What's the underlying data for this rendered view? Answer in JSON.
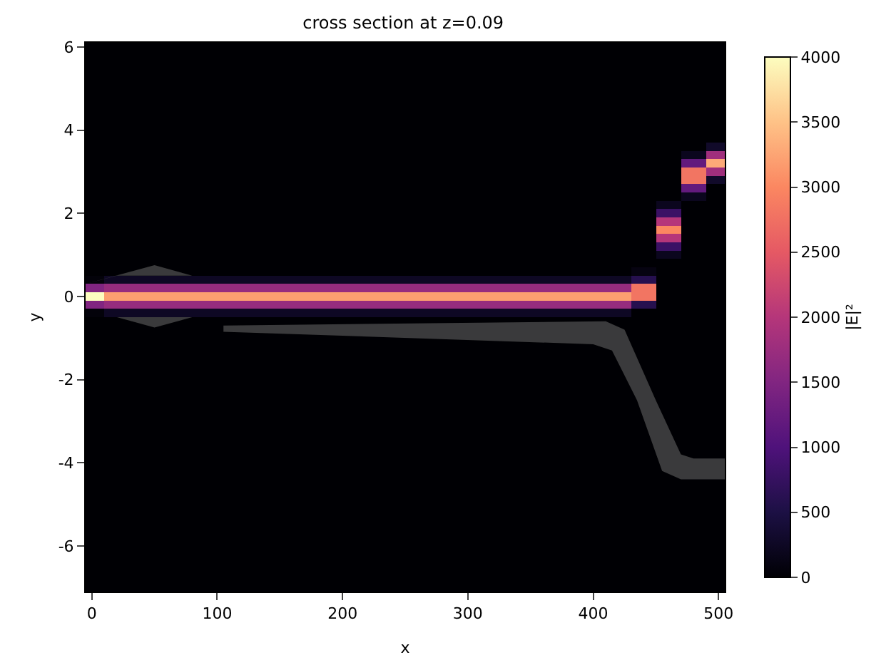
{
  "chart_data": {
    "type": "heatmap",
    "title": "cross section at z=0.09",
    "xlabel": "x",
    "ylabel": "y",
    "clabel": "|E|²",
    "x": [
      0,
      20,
      40,
      60,
      80,
      100,
      120,
      140,
      160,
      180,
      200,
      220,
      240,
      260,
      280,
      300,
      320,
      340,
      360,
      380,
      400,
      420,
      440,
      460,
      480,
      500
    ],
    "y": [
      6.0,
      5.8,
      5.6,
      5.4,
      5.2,
      5.0,
      4.8,
      4.6,
      4.4,
      4.2,
      4.0,
      3.8,
      3.6,
      3.4,
      3.2,
      3.0,
      2.8,
      2.6,
      2.4,
      2.2,
      2.0,
      1.8,
      1.6,
      1.4,
      1.2,
      1.0,
      0.8,
      0.6,
      0.4,
      0.2,
      0,
      -0.2,
      -0.4,
      -0.6,
      -0.8,
      -1.0,
      -1.2,
      -1.4,
      -1.6,
      -1.8,
      -2.0,
      -2.2,
      -2.4,
      -2.6,
      -2.8,
      -3.0,
      -3.2,
      -3.4,
      -3.6,
      -3.8,
      -4.0,
      -4.2,
      -4.4,
      -4.6,
      -4.8,
      -5.0,
      -5.2,
      -5.4,
      -5.6,
      -5.8,
      -6.0,
      -6.2,
      -6.4,
      -6.6,
      -6.8,
      -7.0
    ],
    "cells": [
      [
        0,
        0,
        0,
        0,
        0,
        0,
        0,
        0,
        0,
        0,
        0,
        0,
        0,
        0,
        0,
        0,
        0,
        0,
        0,
        0,
        0,
        0,
        0,
        0,
        0,
        0
      ],
      [
        0,
        0,
        0,
        0,
        0,
        0,
        0,
        0,
        0,
        0,
        0,
        0,
        0,
        0,
        0,
        0,
        0,
        0,
        0,
        0,
        0,
        0,
        0,
        0,
        0,
        0
      ],
      [
        0,
        0,
        0,
        0,
        0,
        0,
        0,
        0,
        0,
        0,
        0,
        0,
        0,
        0,
        0,
        0,
        0,
        0,
        0,
        0,
        0,
        0,
        0,
        0,
        0,
        0
      ],
      [
        0,
        0,
        0,
        0,
        0,
        0,
        0,
        0,
        0,
        0,
        0,
        0,
        0,
        0,
        0,
        0,
        0,
        0,
        0,
        0,
        0,
        0,
        0,
        0,
        0,
        0
      ],
      [
        0,
        0,
        0,
        0,
        0,
        0,
        0,
        0,
        0,
        0,
        0,
        0,
        0,
        0,
        0,
        0,
        0,
        0,
        0,
        0,
        0,
        0,
        0,
        0,
        0,
        0
      ],
      [
        0,
        0,
        0,
        0,
        0,
        0,
        0,
        0,
        0,
        0,
        0,
        0,
        0,
        0,
        0,
        0,
        0,
        0,
        0,
        0,
        0,
        0,
        0,
        0,
        0,
        0
      ],
      [
        0,
        0,
        0,
        0,
        0,
        0,
        0,
        0,
        0,
        0,
        0,
        0,
        0,
        0,
        0,
        0,
        0,
        0,
        0,
        0,
        0,
        0,
        0,
        0,
        0,
        0
      ],
      [
        0,
        0,
        0,
        0,
        0,
        0,
        0,
        0,
        0,
        0,
        0,
        0,
        0,
        0,
        0,
        0,
        0,
        0,
        0,
        0,
        0,
        0,
        0,
        0,
        0,
        0
      ],
      [
        0,
        0,
        0,
        0,
        0,
        0,
        0,
        0,
        0,
        0,
        0,
        0,
        0,
        0,
        0,
        0,
        0,
        0,
        0,
        0,
        0,
        0,
        0,
        0,
        0,
        0
      ],
      [
        0,
        0,
        0,
        0,
        0,
        0,
        0,
        0,
        0,
        0,
        0,
        0,
        0,
        0,
        0,
        0,
        0,
        0,
        0,
        0,
        0,
        0,
        0,
        0,
        0,
        0
      ],
      [
        0,
        0,
        0,
        0,
        0,
        0,
        0,
        0,
        0,
        0,
        0,
        0,
        0,
        0,
        0,
        0,
        0,
        0,
        0,
        0,
        0,
        0,
        0,
        0,
        0,
        0
      ],
      [
        0,
        0,
        0,
        0,
        0,
        0,
        0,
        0,
        0,
        0,
        0,
        0,
        0,
        0,
        0,
        0,
        0,
        0,
        0,
        0,
        0,
        0,
        0,
        0,
        0,
        0
      ],
      [
        0,
        0,
        0,
        0,
        0,
        0,
        0,
        0,
        0,
        0,
        0,
        0,
        0,
        0,
        0,
        0,
        0,
        0,
        0,
        0,
        0,
        0,
        0,
        0,
        0,
        300
      ],
      [
        0,
        0,
        0,
        0,
        0,
        0,
        0,
        0,
        0,
        0,
        0,
        0,
        0,
        0,
        0,
        0,
        0,
        0,
        0,
        0,
        0,
        0,
        0,
        0,
        200,
        1800
      ],
      [
        0,
        0,
        0,
        0,
        0,
        0,
        0,
        0,
        0,
        0,
        0,
        0,
        0,
        0,
        0,
        0,
        0,
        0,
        0,
        0,
        0,
        0,
        0,
        0,
        1200,
        3300
      ],
      [
        0,
        0,
        0,
        0,
        0,
        0,
        0,
        0,
        0,
        0,
        0,
        0,
        0,
        0,
        0,
        0,
        0,
        0,
        0,
        0,
        0,
        0,
        0,
        0,
        2800,
        1800
      ],
      [
        0,
        0,
        0,
        0,
        0,
        0,
        0,
        0,
        0,
        0,
        0,
        0,
        0,
        0,
        0,
        0,
        0,
        0,
        0,
        0,
        0,
        0,
        0,
        0,
        2800,
        300
      ],
      [
        0,
        0,
        0,
        0,
        0,
        0,
        0,
        0,
        0,
        0,
        0,
        0,
        0,
        0,
        0,
        0,
        0,
        0,
        0,
        0,
        0,
        0,
        0,
        0,
        1200,
        0
      ],
      [
        0,
        0,
        0,
        0,
        0,
        0,
        0,
        0,
        0,
        0,
        0,
        0,
        0,
        0,
        0,
        0,
        0,
        0,
        0,
        0,
        0,
        0,
        0,
        0,
        200,
        0
      ],
      [
        0,
        0,
        0,
        0,
        0,
        0,
        0,
        0,
        0,
        0,
        0,
        0,
        0,
        0,
        0,
        0,
        0,
        0,
        0,
        0,
        0,
        0,
        0,
        200,
        0,
        0
      ],
      [
        0,
        0,
        0,
        0,
        0,
        0,
        0,
        0,
        0,
        0,
        0,
        0,
        0,
        0,
        0,
        0,
        0,
        0,
        0,
        0,
        0,
        0,
        0,
        800,
        0,
        0
      ],
      [
        0,
        0,
        0,
        0,
        0,
        0,
        0,
        0,
        0,
        0,
        0,
        0,
        0,
        0,
        0,
        0,
        0,
        0,
        0,
        0,
        0,
        0,
        0,
        2000,
        0,
        0
      ],
      [
        0,
        0,
        0,
        0,
        0,
        0,
        0,
        0,
        0,
        0,
        0,
        0,
        0,
        0,
        0,
        0,
        0,
        0,
        0,
        0,
        0,
        0,
        0,
        3000,
        0,
        0
      ],
      [
        0,
        0,
        0,
        0,
        0,
        0,
        0,
        0,
        0,
        0,
        0,
        0,
        0,
        0,
        0,
        0,
        0,
        0,
        0,
        0,
        0,
        0,
        0,
        2000,
        0,
        0
      ],
      [
        0,
        0,
        0,
        0,
        0,
        0,
        0,
        0,
        0,
        0,
        0,
        0,
        0,
        0,
        0,
        0,
        0,
        0,
        0,
        0,
        0,
        0,
        0,
        800,
        0,
        0
      ],
      [
        0,
        0,
        0,
        0,
        0,
        0,
        0,
        0,
        0,
        0,
        0,
        0,
        0,
        0,
        0,
        0,
        0,
        0,
        0,
        0,
        0,
        0,
        0,
        200,
        0,
        0
      ],
      [
        0,
        0,
        0,
        0,
        0,
        0,
        0,
        0,
        0,
        0,
        0,
        0,
        0,
        0,
        0,
        0,
        0,
        0,
        0,
        0,
        0,
        0,
        0,
        0,
        0,
        0
      ],
      [
        0,
        0,
        null,
        null,
        0,
        0,
        0,
        0,
        0,
        0,
        0,
        0,
        0,
        0,
        0,
        0,
        0,
        0,
        0,
        0,
        0,
        0,
        100,
        0,
        0,
        0
      ],
      [
        50,
        250,
        250,
        250,
        250,
        250,
        250,
        250,
        250,
        250,
        250,
        250,
        250,
        250,
        250,
        250,
        250,
        250,
        250,
        250,
        250,
        250,
        600,
        0,
        0,
        0
      ],
      [
        1500,
        1700,
        1700,
        1700,
        1700,
        1700,
        1700,
        1700,
        1700,
        1700,
        1700,
        1700,
        1700,
        1700,
        1700,
        1700,
        1700,
        1700,
        1700,
        1700,
        1700,
        1700,
        2800,
        0,
        0,
        0
      ],
      [
        4000,
        3200,
        3200,
        3200,
        3200,
        3200,
        3200,
        3200,
        3200,
        3200,
        3200,
        3200,
        3200,
        3200,
        3200,
        3200,
        3200,
        3200,
        3200,
        3200,
        3200,
        3200,
        2800,
        0,
        0,
        0
      ],
      [
        1500,
        1700,
        1700,
        1700,
        1700,
        1700,
        1700,
        1700,
        1700,
        1700,
        1700,
        1700,
        1700,
        1700,
        1700,
        1700,
        1700,
        1700,
        1700,
        1700,
        1700,
        1700,
        600,
        0,
        0,
        0
      ],
      [
        50,
        250,
        250,
        250,
        250,
        250,
        250,
        250,
        250,
        250,
        250,
        250,
        250,
        250,
        250,
        250,
        250,
        250,
        250,
        250,
        250,
        250,
        0,
        0,
        0,
        0
      ],
      [
        0,
        0,
        null,
        null,
        0,
        0,
        0,
        0,
        0,
        0,
        0,
        0,
        0,
        0,
        0,
        0,
        0,
        0,
        0,
        0,
        null,
        0,
        0,
        0,
        0,
        0
      ],
      [
        0,
        0,
        0,
        0,
        0,
        0,
        null,
        null,
        null,
        null,
        null,
        null,
        null,
        null,
        null,
        null,
        null,
        null,
        null,
        null,
        null,
        null,
        0,
        0,
        0,
        0
      ],
      [
        0,
        0,
        0,
        0,
        0,
        0,
        0,
        0,
        0,
        0,
        0,
        0,
        0,
        null,
        null,
        null,
        null,
        null,
        null,
        null,
        null,
        null,
        0,
        0,
        0,
        0
      ],
      [
        0,
        0,
        0,
        0,
        0,
        0,
        0,
        0,
        0,
        0,
        0,
        0,
        0,
        0,
        0,
        0,
        0,
        0,
        0,
        0,
        0,
        null,
        0,
        0,
        0,
        0
      ],
      [
        0,
        0,
        0,
        0,
        0,
        0,
        0,
        0,
        0,
        0,
        0,
        0,
        0,
        0,
        0,
        0,
        0,
        0,
        0,
        0,
        0,
        null,
        0,
        0,
        0,
        0
      ],
      [
        0,
        0,
        0,
        0,
        0,
        0,
        0,
        0,
        0,
        0,
        0,
        0,
        0,
        0,
        0,
        0,
        0,
        0,
        0,
        0,
        0,
        null,
        0,
        0,
        0,
        0
      ],
      [
        0,
        0,
        0,
        0,
        0,
        0,
        0,
        0,
        0,
        0,
        0,
        0,
        0,
        0,
        0,
        0,
        0,
        0,
        0,
        0,
        0,
        0,
        0,
        0,
        0,
        0
      ],
      [
        0,
        0,
        0,
        0,
        0,
        0,
        0,
        0,
        0,
        0,
        0,
        0,
        0,
        0,
        0,
        0,
        0,
        0,
        0,
        0,
        0,
        0,
        null,
        0,
        0,
        0
      ],
      [
        0,
        0,
        0,
        0,
        0,
        0,
        0,
        0,
        0,
        0,
        0,
        0,
        0,
        0,
        0,
        0,
        0,
        0,
        0,
        0,
        0,
        0,
        null,
        0,
        0,
        0
      ],
      [
        0,
        0,
        0,
        0,
        0,
        0,
        0,
        0,
        0,
        0,
        0,
        0,
        0,
        0,
        0,
        0,
        0,
        0,
        0,
        0,
        0,
        0,
        null,
        0,
        0,
        0
      ],
      [
        0,
        0,
        0,
        0,
        0,
        0,
        0,
        0,
        0,
        0,
        0,
        0,
        0,
        0,
        0,
        0,
        0,
        0,
        0,
        0,
        0,
        0,
        null,
        0,
        0,
        0
      ],
      [
        0,
        0,
        0,
        0,
        0,
        0,
        0,
        0,
        0,
        0,
        0,
        0,
        0,
        0,
        0,
        0,
        0,
        0,
        0,
        0,
        0,
        0,
        null,
        0,
        0,
        0
      ],
      [
        0,
        0,
        0,
        0,
        0,
        0,
        0,
        0,
        0,
        0,
        0,
        0,
        0,
        0,
        0,
        0,
        0,
        0,
        0,
        0,
        0,
        0,
        0,
        0,
        0,
        0
      ],
      [
        0,
        0,
        0,
        0,
        0,
        0,
        0,
        0,
        0,
        0,
        0,
        0,
        0,
        0,
        0,
        0,
        0,
        0,
        0,
        0,
        0,
        0,
        0,
        null,
        0,
        0
      ],
      [
        0,
        0,
        0,
        0,
        0,
        0,
        0,
        0,
        0,
        0,
        0,
        0,
        0,
        0,
        0,
        0,
        0,
        0,
        0,
        0,
        0,
        0,
        0,
        null,
        0,
        0
      ],
      [
        0,
        0,
        0,
        0,
        0,
        0,
        0,
        0,
        0,
        0,
        0,
        0,
        0,
        0,
        0,
        0,
        0,
        0,
        0,
        0,
        0,
        0,
        0,
        null,
        0,
        0
      ],
      [
        0,
        0,
        0,
        0,
        0,
        0,
        0,
        0,
        0,
        0,
        0,
        0,
        0,
        0,
        0,
        0,
        0,
        0,
        0,
        0,
        0,
        0,
        0,
        null,
        0,
        0
      ],
      [
        0,
        0,
        0,
        0,
        0,
        0,
        0,
        0,
        0,
        0,
        0,
        0,
        0,
        0,
        0,
        0,
        0,
        0,
        0,
        0,
        0,
        0,
        0,
        null,
        null,
        null
      ],
      [
        0,
        0,
        0,
        0,
        0,
        0,
        0,
        0,
        0,
        0,
        0,
        0,
        0,
        0,
        0,
        0,
        0,
        0,
        0,
        0,
        0,
        0,
        0,
        null,
        null,
        null
      ],
      [
        0,
        0,
        0,
        0,
        0,
        0,
        0,
        0,
        0,
        0,
        0,
        0,
        0,
        0,
        0,
        0,
        0,
        0,
        0,
        0,
        0,
        0,
        0,
        0,
        null,
        null
      ],
      [
        0,
        0,
        0,
        0,
        0,
        0,
        0,
        0,
        0,
        0,
        0,
        0,
        0,
        0,
        0,
        0,
        0,
        0,
        0,
        0,
        0,
        0,
        0,
        0,
        0,
        0
      ],
      [
        0,
        0,
        0,
        0,
        0,
        0,
        0,
        0,
        0,
        0,
        0,
        0,
        0,
        0,
        0,
        0,
        0,
        0,
        0,
        0,
        0,
        0,
        0,
        0,
        0,
        0
      ],
      [
        0,
        0,
        0,
        0,
        0,
        0,
        0,
        0,
        0,
        0,
        0,
        0,
        0,
        0,
        0,
        0,
        0,
        0,
        0,
        0,
        0,
        0,
        0,
        0,
        0,
        0
      ],
      [
        0,
        0,
        0,
        0,
        0,
        0,
        0,
        0,
        0,
        0,
        0,
        0,
        0,
        0,
        0,
        0,
        0,
        0,
        0,
        0,
        0,
        0,
        0,
        0,
        0,
        0
      ],
      [
        0,
        0,
        0,
        0,
        0,
        0,
        0,
        0,
        0,
        0,
        0,
        0,
        0,
        0,
        0,
        0,
        0,
        0,
        0,
        0,
        0,
        0,
        0,
        0,
        0,
        0
      ],
      [
        0,
        0,
        0,
        0,
        0,
        0,
        0,
        0,
        0,
        0,
        0,
        0,
        0,
        0,
        0,
        0,
        0,
        0,
        0,
        0,
        0,
        0,
        0,
        0,
        0,
        0
      ],
      [
        0,
        0,
        0,
        0,
        0,
        0,
        0,
        0,
        0,
        0,
        0,
        0,
        0,
        0,
        0,
        0,
        0,
        0,
        0,
        0,
        0,
        0,
        0,
        0,
        0,
        0
      ],
      [
        0,
        0,
        0,
        0,
        0,
        0,
        0,
        0,
        0,
        0,
        0,
        0,
        0,
        0,
        0,
        0,
        0,
        0,
        0,
        0,
        0,
        0,
        0,
        0,
        0,
        0
      ],
      [
        0,
        0,
        0,
        0,
        0,
        0,
        0,
        0,
        0,
        0,
        0,
        0,
        0,
        0,
        0,
        0,
        0,
        0,
        0,
        0,
        0,
        0,
        0,
        0,
        0,
        0
      ],
      [
        0,
        0,
        0,
        0,
        0,
        0,
        0,
        0,
        0,
        0,
        0,
        0,
        0,
        0,
        0,
        0,
        0,
        0,
        0,
        0,
        0,
        0,
        0,
        0,
        0,
        0
      ],
      [
        0,
        0,
        0,
        0,
        0,
        0,
        0,
        0,
        0,
        0,
        0,
        0,
        0,
        0,
        0,
        0,
        0,
        0,
        0,
        0,
        0,
        0,
        0,
        0,
        0,
        0
      ],
      [
        0,
        0,
        0,
        0,
        0,
        0,
        0,
        0,
        0,
        0,
        0,
        0,
        0,
        0,
        0,
        0,
        0,
        0,
        0,
        0,
        0,
        0,
        0,
        0,
        0,
        0
      ],
      [
        0,
        0,
        0,
        0,
        0,
        0,
        0,
        0,
        0,
        0,
        0,
        0,
        0,
        0,
        0,
        0,
        0,
        0,
        0,
        0,
        0,
        0,
        0,
        0,
        0,
        0
      ]
    ],
    "xlim": [
      -5,
      505
    ],
    "xticks": [
      0,
      100,
      200,
      300,
      400,
      500
    ],
    "ylim": [
      -7.1,
      6.1
    ],
    "yticks": [
      -6,
      -4,
      -2,
      0,
      2,
      4,
      6
    ],
    "clim": [
      0,
      4000
    ],
    "cticks": [
      0,
      500,
      1000,
      1500,
      2000,
      2500,
      3000,
      3500,
      4000
    ]
  }
}
